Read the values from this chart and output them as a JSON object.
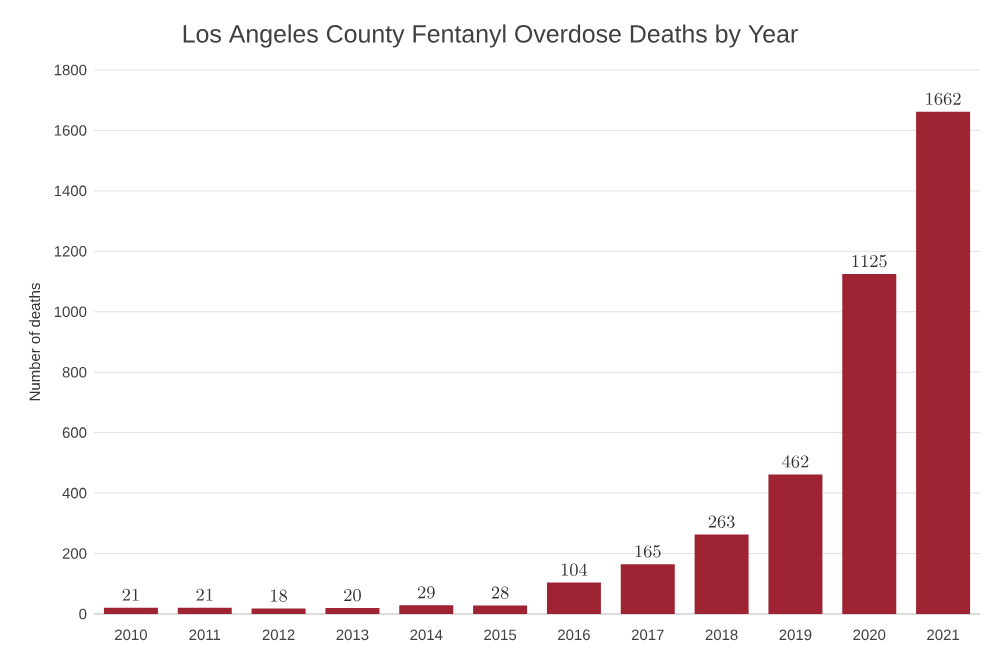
{
  "chart_data": {
    "type": "bar",
    "title": "Los Angeles County Fentanyl Overdose Deaths by Year",
    "ylabel": "Number of deaths",
    "categories": [
      "2010",
      "2011",
      "2012",
      "2013",
      "2014",
      "2015",
      "2016",
      "2017",
      "2018",
      "2019",
      "2020",
      "2021"
    ],
    "values": [
      21,
      21,
      18,
      20,
      29,
      28,
      104,
      165,
      263,
      462,
      1125,
      1662
    ],
    "color": "#9e2333",
    "ylim": [
      0,
      1800
    ],
    "yticks": [
      0,
      200,
      400,
      600,
      800,
      1000,
      1200,
      1400,
      1600,
      1800
    ],
    "grid": "y",
    "data_labels": true
  }
}
